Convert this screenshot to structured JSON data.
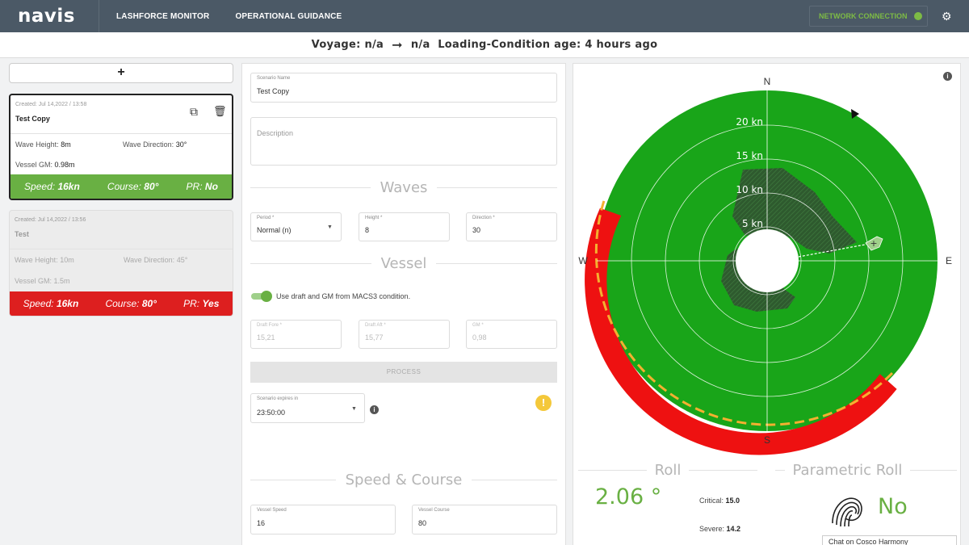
{
  "nav": {
    "logo": "navis",
    "links": [
      "LASHFORCE MONITOR",
      "OPERATIONAL GUIDANCE"
    ],
    "network_label": "NETWORK CONNECTION",
    "network_status_color": "#7dbb45"
  },
  "voyage": {
    "label": "Voyage:",
    "from": "n/a",
    "to": "n/a",
    "condition_label": "Loading-Condition age:",
    "condition_age": "4 hours ago"
  },
  "scenarios": {
    "add_label": "+",
    "items": [
      {
        "created": "Created: Jul 14,2022 / 13:58",
        "name": "Test Copy",
        "wave_height_label": "Wave Height:",
        "wave_height": "8m",
        "wave_direction_label": "Wave Direction:",
        "wave_direction": "30°",
        "gm_label": "Vessel GM:",
        "gm": "0.98m",
        "speed_label": "Speed:",
        "speed": "16kn",
        "course_label": "Course:",
        "course": "80°",
        "pr_label": "PR:",
        "pr": "No",
        "status_color": "#69b043"
      },
      {
        "created": "Created: Jul 14,2022 / 13:56",
        "name": "Test",
        "wave_height_label": "Wave Height:",
        "wave_height": "10m",
        "wave_direction_label": "Wave Direction:",
        "wave_direction": "45°",
        "gm_label": "Vessel GM:",
        "gm": "1.5m",
        "speed_label": "Speed:",
        "speed": "16kn",
        "course_label": "Course:",
        "course": "80°",
        "pr_label": "PR:",
        "pr": "Yes",
        "status_color": "#dd1f1f"
      }
    ]
  },
  "form": {
    "scenario_name_label": "Scenario Name",
    "scenario_name": "Test Copy",
    "description_placeholder": "Description",
    "waves_title": "Waves",
    "period_label": "Period *",
    "period": "Normal (n)",
    "height_label": "Height *",
    "height": "8",
    "direction_label": "Direction *",
    "direction": "30",
    "vessel_title": "Vessel",
    "toggle_label": "Use draft and GM from MACS3 condition.",
    "draft_fore_label": "Draft Fore *",
    "draft_fore": "15,21",
    "draft_aft_label": "Draft Aft *",
    "draft_aft": "15,77",
    "gm_label": "GM *",
    "gm": "0,98",
    "process_label": "PROCESS",
    "expires_label": "Scenario expires in",
    "expires": "23:50:00",
    "speed_course_title": "Speed & Course",
    "vessel_speed_label": "Vessel Speed",
    "vessel_speed": "16",
    "vessel_course_label": "Vessel Course",
    "vessel_course": "80"
  },
  "polar": {
    "compass": [
      "N",
      "E",
      "S",
      "W"
    ],
    "rings": [
      "5 kn",
      "10 kn",
      "15 kn",
      "20 kn"
    ],
    "safe_color": "#19a519",
    "danger_color": "#ee1111",
    "warning_color": "#f4b030"
  },
  "roll": {
    "title": "Roll",
    "value": "2.06 °",
    "critical_label": "Critical:",
    "critical": "15.0",
    "severe_label": "Severe:",
    "severe": "14.2"
  },
  "parametric": {
    "title": "Parametric Roll",
    "value": "No"
  },
  "chat": {
    "label": "Chat on Cosco Harmony"
  }
}
